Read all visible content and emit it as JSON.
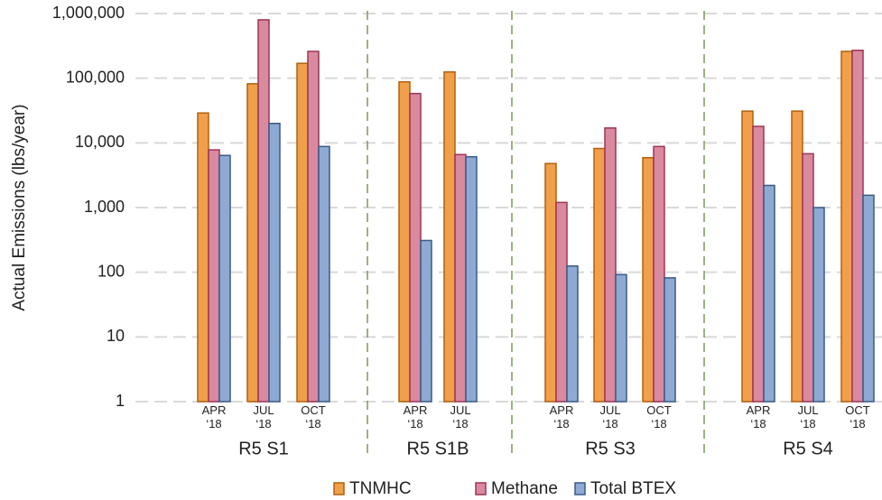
{
  "chart_data": {
    "type": "bar",
    "y_label": "Actual Emissions (lbs/year)",
    "log_scale": true,
    "grid": true,
    "legend": "bottom",
    "ylim": [
      1,
      1000000
    ],
    "yticks": [
      1,
      10,
      100,
      {
        "value": 1000,
        "label": "1,000"
      },
      {
        "value": 10000,
        "label": "10,000"
      },
      {
        "value": 100000,
        "label": "100,000"
      },
      {
        "value": 1000000,
        "label": "1,000,000"
      }
    ],
    "groups": [
      {
        "name": "R5 S1",
        "categories": [
          "APR ‘18",
          "JUL ‘18",
          "OCT ‘18"
        ]
      },
      {
        "name": "R5 S1B",
        "categories": [
          "APR ‘18",
          "JUL ‘18"
        ]
      },
      {
        "name": "R5 S3",
        "categories": [
          "APR ‘18",
          "JUL ‘18",
          "OCT ‘18"
        ]
      },
      {
        "name": "R5 S4",
        "categories": [
          "APR ‘18",
          "JUL ‘18",
          "OCT ‘18"
        ]
      }
    ],
    "series": [
      {
        "name": "TNMHC",
        "color": "#f0a04b",
        "values": [
          29000,
          82000,
          170000,
          88000,
          125000,
          4800,
          8200,
          5900,
          31000,
          31000,
          260000
        ]
      },
      {
        "name": "Methane",
        "color": "#d98a9e",
        "values": [
          7800,
          800000,
          260000,
          58000,
          6600,
          1200,
          17000,
          8800,
          18000,
          6800,
          270000
        ]
      },
      {
        "name": "Total BTEX",
        "color": "#8eaad2",
        "values": [
          6400,
          20000,
          8800,
          310,
          6100,
          125,
          92,
          82,
          2200,
          1000,
          1550
        ]
      }
    ]
  }
}
